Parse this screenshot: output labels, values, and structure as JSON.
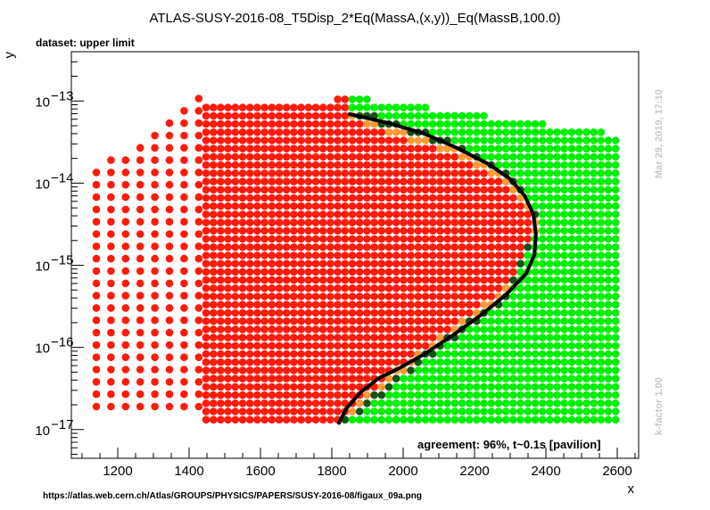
{
  "chart_data": {
    "type": "scatter",
    "title": "ATLAS-SUSY-2016-08_T5Disp_2*Eq(MassA,(x,y))_Eq(MassB,100.0)",
    "subtitle": "dataset: upper limit",
    "xlabel": "x",
    "ylabel": "y",
    "xlim": [
      1070,
      2660
    ],
    "ylog": true,
    "ylim_exp": [
      -17.35,
      -12.4
    ],
    "x_ticks": [
      1200,
      1400,
      1600,
      1800,
      2000,
      2200,
      2400,
      2600
    ],
    "y_ticks": [
      {
        "exp": -13,
        "label": "10",
        "sup": "−13"
      },
      {
        "exp": -14,
        "label": "10",
        "sup": "−14"
      },
      {
        "exp": -15,
        "label": "10",
        "sup": "−15"
      },
      {
        "exp": -16,
        "label": "10",
        "sup": "−16"
      },
      {
        "exp": -17,
        "label": "10",
        "sup": "−17"
      }
    ],
    "agreement": "agreement: 96%, t~0.1s [pavilion]",
    "timestamp": "Mar 29, 2019, 17:10",
    "kfactor": "k-factor 1.00",
    "source_url": "https://atlas.web.cern.ch/Atlas/GROUPS/PHYSICS/PAPERS/SUSY-2016-08/figaux_09a.png",
    "colors": {
      "excluded": "#ff1a0a",
      "allowed": "#00ee00",
      "excluded_border": "#ff9933",
      "allowed_border": "#145214",
      "exclusion_curve": "#000000",
      "side_text": "#c8c8c8"
    },
    "grid": false,
    "exclusion_curve": [
      [
        1850,
        -13.16
      ],
      [
        1960,
        -13.27
      ],
      [
        2060,
        -13.4
      ],
      [
        2150,
        -13.57
      ],
      [
        2240,
        -13.77
      ],
      [
        2300,
        -13.95
      ],
      [
        2340,
        -14.15
      ],
      [
        2365,
        -14.38
      ],
      [
        2372,
        -14.62
      ],
      [
        2368,
        -14.87
      ],
      [
        2345,
        -15.1
      ],
      [
        2290,
        -15.35
      ],
      [
        2220,
        -15.6
      ],
      [
        2140,
        -15.85
      ],
      [
        2060,
        -16.08
      ],
      [
        1990,
        -16.25
      ],
      [
        1930,
        -16.38
      ],
      [
        1880,
        -16.55
      ],
      [
        1840,
        -16.75
      ],
      [
        1820,
        -16.92
      ]
    ]
  }
}
